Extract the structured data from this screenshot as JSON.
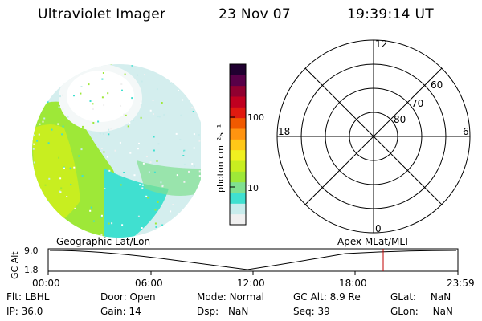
{
  "header": {
    "instrument": "Ultraviolet Imager",
    "date": "23 Nov 07",
    "time": "19:39:14 UT"
  },
  "colorbar": {
    "label": "photon cm⁻²s⁻¹",
    "tick_100": "100",
    "tick_10": "10",
    "colors": [
      "#f0f0f0",
      "#c8ecec",
      "#40e0d0",
      "#80e090",
      "#9ee838",
      "#c8ee20",
      "#f0f020",
      "#ffc818",
      "#ff9410",
      "#f05a00",
      "#e01a10",
      "#c00020",
      "#900030",
      "#580048",
      "#200030"
    ]
  },
  "polar": {
    "mlt_top": "12",
    "mlt_left": "18",
    "mlt_right": "6",
    "mlt_bottom": "0",
    "lat_60": "60",
    "lat_70": "70",
    "lat_80": "80"
  },
  "track": {
    "geo_label": "Geographic Lat/Lon",
    "apex_label": "Apex MLat/MLT",
    "axis_label": "GC Alt",
    "y_max": "9.0",
    "y_min": "1.8",
    "x_ticks": [
      "00:00",
      "06:00",
      "12:00",
      "18:00",
      "23:59"
    ],
    "marker_color": "#c00000"
  },
  "info": {
    "filter": {
      "label": "Flt:",
      "value": "LBHL"
    },
    "door": {
      "label": "Door:",
      "value": "Open"
    },
    "mode": {
      "label": "Mode:",
      "value": "Normal"
    },
    "gc_alt": {
      "label": "GC Alt:",
      "value": "8.9 Re"
    },
    "glat": {
      "label": "GLat:",
      "value": "NaN"
    },
    "ip": {
      "label": "IP:",
      "value": "36.0"
    },
    "gain": {
      "label": "Gain:",
      "value": "14"
    },
    "dsp": {
      "label": "Dsp:",
      "value": "NaN"
    },
    "seq": {
      "label": "Seq:",
      "value": "39"
    },
    "glon": {
      "label": "GLon:",
      "value": "NaN"
    }
  }
}
